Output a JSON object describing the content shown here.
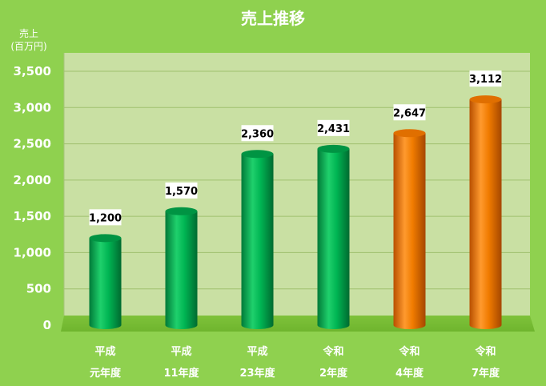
{
  "chart_data": {
    "type": "bar",
    "title": "売上推移",
    "ylabel": [
      "売上",
      "(百万円)"
    ],
    "xlabel": "",
    "categories": [
      [
        "平成",
        "元年度"
      ],
      [
        "平成",
        "11年度"
      ],
      [
        "平成",
        "23年度"
      ],
      [
        "令和",
        "2年度"
      ],
      [
        "令和",
        "4年度"
      ],
      [
        "令和",
        "7年度"
      ]
    ],
    "values": [
      1200,
      1570,
      2360,
      2431,
      2647,
      3112
    ],
    "value_labels": [
      "1,200",
      "1,570",
      "2,360",
      "2,431",
      "2,647",
      "3,112"
    ],
    "ylim": [
      0,
      3500
    ],
    "yticks": [
      0,
      500,
      1000,
      1500,
      2000,
      2500,
      3000,
      3500
    ],
    "ytick_labels": [
      "0",
      "500",
      "1,000",
      "1,500",
      "2,000",
      "2,500",
      "3,000",
      "3,500"
    ],
    "grid": true,
    "bar_style": "cylinder",
    "bar_colors": [
      "green",
      "green",
      "green",
      "green",
      "orange",
      "orange"
    ],
    "colors": {
      "green": "#00a84f",
      "orange": "#f07b00",
      "background": "#8fd14f",
      "plot_area": "#c9e0a3"
    }
  }
}
